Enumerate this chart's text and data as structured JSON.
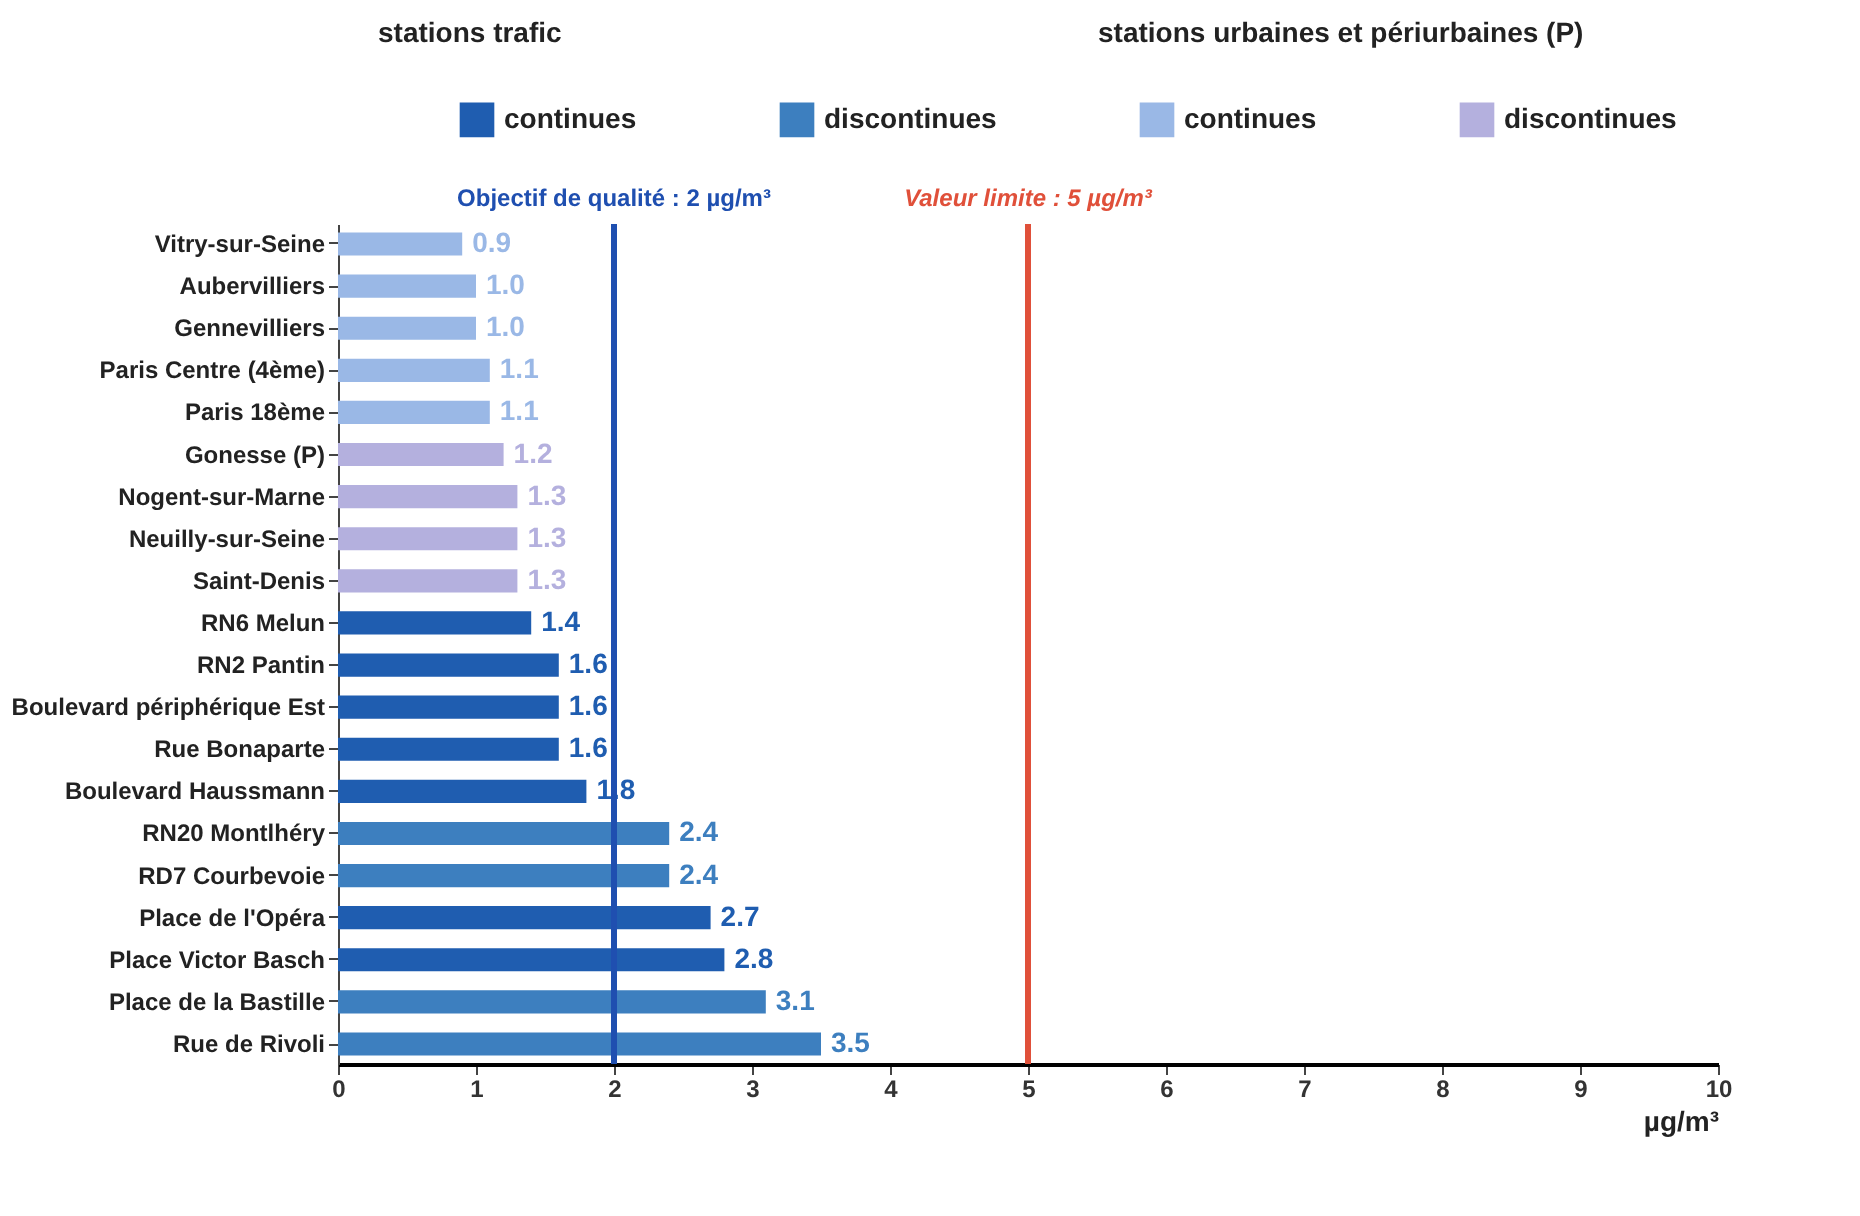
{
  "chart_data": {
    "type": "bar",
    "orientation": "horizontal",
    "categories": [
      "Vitry-sur-Seine",
      "Aubervilliers",
      "Gennevilliers",
      "Paris Centre (4ème)",
      "Paris 18ème",
      "Gonesse (P)",
      "Nogent-sur-Marne",
      "Neuilly-sur-Seine",
      "Saint-Denis",
      "RN6 Melun",
      "RN2 Pantin",
      "Boulevard périphérique Est",
      "Rue Bonaparte",
      "Boulevard Haussmann",
      "RN20 Montlhéry",
      "RD7 Courbevoie",
      "Place de l'Opéra",
      "Place Victor Basch",
      "Place de la Bastille",
      "Rue de Rivoli"
    ],
    "series": [
      {
        "name": "continues",
        "color": "#1f5db0",
        "values": [
          null,
          null,
          null,
          null,
          null,
          null,
          null,
          null,
          null,
          1.4,
          1.6,
          1.6,
          1.6,
          1.8,
          null,
          null,
          2.7,
          2.8,
          null,
          null
        ],
        "value_labels": [
          null,
          null,
          null,
          null,
          null,
          null,
          null,
          null,
          null,
          "1.4",
          "1.6",
          "1.6",
          "1.6",
          "1.8",
          null,
          null,
          "2.7",
          "2.8",
          null,
          null
        ]
      },
      {
        "name": "discontinues",
        "color": "#3d7fbf",
        "values": [
          null,
          null,
          null,
          null,
          null,
          null,
          null,
          null,
          null,
          null,
          null,
          null,
          null,
          null,
          2.4,
          2.4,
          null,
          null,
          3.1,
          3.5
        ],
        "value_labels": [
          null,
          null,
          null,
          null,
          null,
          null,
          null,
          null,
          null,
          null,
          null,
          null,
          null,
          null,
          "2.4",
          "2.4",
          null,
          null,
          "3.1",
          "3.5"
        ]
      },
      {
        "name": "continues ",
        "color": "#9ab8e6",
        "values": [
          0.9,
          1.0,
          1.0,
          1.1,
          1.1,
          null,
          null,
          null,
          null,
          null,
          null,
          null,
          null,
          null,
          null,
          null,
          null,
          null,
          null,
          null
        ],
        "value_labels": [
          "0.9",
          "1.0",
          "1.0",
          "1.1",
          "1.1",
          null,
          null,
          null,
          null,
          null,
          null,
          null,
          null,
          null,
          null,
          null,
          null,
          null,
          null,
          null
        ]
      },
      {
        "name": "discontinues ",
        "color": "#b4b0de",
        "values": [
          null,
          null,
          null,
          null,
          null,
          1.2,
          1.3,
          1.3,
          1.3,
          null,
          null,
          null,
          null,
          null,
          null,
          null,
          null,
          null,
          null,
          null
        ],
        "value_labels": [
          null,
          null,
          null,
          null,
          null,
          "1.2",
          "1.3",
          "1.3",
          "1.3",
          null,
          null,
          null,
          null,
          null,
          null,
          null,
          null,
          null,
          null,
          null
        ]
      }
    ],
    "xlabel": "µg/m³",
    "xlim": [
      0,
      10
    ],
    "xticks": [
      0,
      1,
      2,
      3,
      4,
      5,
      6,
      7,
      8,
      9,
      10
    ],
    "ref_lines": [
      {
        "axis": "x",
        "value": 2,
        "label": "Objectif de qualité : 2 µg/m³",
        "color": "#1f4fb0"
      },
      {
        "axis": "x",
        "value": 5,
        "label": "Valeur limite : 5 µg/m³",
        "color": "#e0503a"
      }
    ],
    "annotations": [
      "stations trafic",
      "stations urbaines et périurbaines (P)"
    ],
    "legend": "top",
    "grid": false
  }
}
